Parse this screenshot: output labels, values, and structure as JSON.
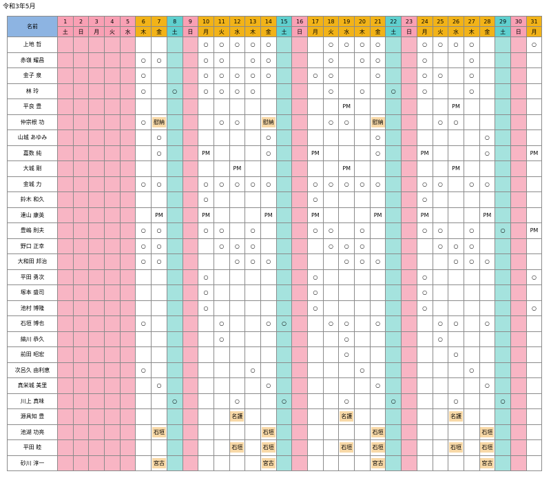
{
  "title": "令和3年5月",
  "header_name": "名前",
  "days": [
    {
      "d": "1",
      "w": "土",
      "t": "hol"
    },
    {
      "d": "2",
      "w": "日",
      "t": "hol"
    },
    {
      "d": "3",
      "w": "月",
      "t": "hol"
    },
    {
      "d": "4",
      "w": "火",
      "t": "hol"
    },
    {
      "d": "5",
      "w": "水",
      "t": "hol"
    },
    {
      "d": "6",
      "w": "木",
      "t": "w"
    },
    {
      "d": "7",
      "w": "金",
      "t": "w"
    },
    {
      "d": "8",
      "w": "土",
      "t": "sat"
    },
    {
      "d": "9",
      "w": "日",
      "t": "sun"
    },
    {
      "d": "10",
      "w": "月",
      "t": "w"
    },
    {
      "d": "11",
      "w": "火",
      "t": "w"
    },
    {
      "d": "12",
      "w": "水",
      "t": "w"
    },
    {
      "d": "13",
      "w": "木",
      "t": "w"
    },
    {
      "d": "14",
      "w": "金",
      "t": "w"
    },
    {
      "d": "15",
      "w": "土",
      "t": "sat"
    },
    {
      "d": "16",
      "w": "日",
      "t": "sun"
    },
    {
      "d": "17",
      "w": "月",
      "t": "w"
    },
    {
      "d": "18",
      "w": "火",
      "t": "w"
    },
    {
      "d": "19",
      "w": "水",
      "t": "w"
    },
    {
      "d": "20",
      "w": "木",
      "t": "w"
    },
    {
      "d": "21",
      "w": "金",
      "t": "w"
    },
    {
      "d": "22",
      "w": "土",
      "t": "sat"
    },
    {
      "d": "23",
      "w": "日",
      "t": "sun"
    },
    {
      "d": "24",
      "w": "月",
      "t": "w"
    },
    {
      "d": "25",
      "w": "火",
      "t": "w"
    },
    {
      "d": "26",
      "w": "水",
      "t": "w"
    },
    {
      "d": "27",
      "w": "木",
      "t": "w"
    },
    {
      "d": "28",
      "w": "金",
      "t": "w"
    },
    {
      "d": "29",
      "w": "土",
      "t": "sat"
    },
    {
      "d": "30",
      "w": "日",
      "t": "sun"
    },
    {
      "d": "31",
      "w": "月",
      "t": "w"
    }
  ],
  "rows": [
    {
      "name": "上地 哲",
      "cells": {
        "10": "○",
        "11": "○",
        "12": "○",
        "13": "○",
        "14": "○",
        "18": "○",
        "19": "○",
        "20": "○",
        "21": "○",
        "24": "○",
        "25": "○",
        "26": "○",
        "27": "○",
        "31": "○"
      }
    },
    {
      "name": "赤嶺 耀昌",
      "cells": {
        "6": "○",
        "7": "○",
        "10": "○",
        "11": "○",
        "13": "○",
        "14": "○",
        "18": "○",
        "20": "○",
        "21": "○",
        "24": "○",
        "27": "○"
      }
    },
    {
      "name": "金子 泉",
      "cells": {
        "6": "○",
        "10": "○",
        "11": "○",
        "12": "○",
        "13": "○",
        "14": "○",
        "17": "○",
        "18": "○",
        "21": "○",
        "24": "○",
        "25": "○",
        "27": "○"
      }
    },
    {
      "name": "林 玲",
      "cells": {
        "6": "○",
        "8": "○",
        "10": "○",
        "11": "○",
        "12": "○",
        "13": "○",
        "18": "○",
        "20": "○",
        "22": "○",
        "24": "○",
        "27": "○"
      }
    },
    {
      "name": "平良 豊",
      "cells": {
        "19": "PM",
        "26": "PM"
      }
    },
    {
      "name": "仲宗根 功",
      "cells": {
        "6": "○",
        "7": "[慰納]",
        "11": "○",
        "12": "○",
        "14": "[慰納]",
        "18": "○",
        "19": "○",
        "21": "[慰納]",
        "25": "○",
        "26": "○"
      }
    },
    {
      "name": "山城 あゆみ",
      "cells": {
        "7": "○",
        "14": "○",
        "21": "○",
        "28": "○"
      }
    },
    {
      "name": "嘉数 純",
      "cells": {
        "7": "○",
        "10": "PM",
        "14": "○",
        "17": "PM",
        "21": "○",
        "24": "PM",
        "28": "○",
        "31": "PM"
      }
    },
    {
      "name": "大城 剛",
      "cells": {
        "12": "PM",
        "19": "PM",
        "26": "PM"
      }
    },
    {
      "name": "金城 力",
      "cells": {
        "6": "○",
        "7": "○",
        "10": "○",
        "11": "○",
        "12": "○",
        "13": "○",
        "14": "○",
        "17": "○",
        "18": "○",
        "19": "○",
        "20": "○",
        "21": "○",
        "24": "○",
        "25": "○",
        "27": "○",
        "28": "○"
      }
    },
    {
      "name": "鈴木 和久",
      "cells": {
        "10": "○",
        "17": "○",
        "24": "○"
      }
    },
    {
      "name": "達山 康英",
      "cells": {
        "7": "PM",
        "10": "PM",
        "14": "PM",
        "17": "PM",
        "21": "PM",
        "24": "PM",
        "28": "PM"
      }
    },
    {
      "name": "豊嶋 則夫",
      "cells": {
        "6": "○",
        "7": "○",
        "10": "○",
        "11": "○",
        "13": "○",
        "17": "○",
        "18": "○",
        "20": "○",
        "24": "○",
        "25": "○",
        "27": "○",
        "29": "○",
        "31": "PM"
      }
    },
    {
      "name": "野口 正幸",
      "cells": {
        "6": "○",
        "7": "○",
        "11": "○",
        "12": "○",
        "13": "○",
        "18": "○",
        "19": "○",
        "20": "○",
        "25": "○",
        "26": "○",
        "27": "○"
      }
    },
    {
      "name": "大和田 邦治",
      "cells": {
        "6": "○",
        "7": "○",
        "12": "○",
        "13": "○",
        "14": "○",
        "19": "○",
        "20": "○",
        "21": "○",
        "26": "○",
        "27": "○",
        "28": "○"
      }
    },
    {
      "name": "平田 勇次",
      "cells": {
        "10": "○",
        "17": "○",
        "24": "○",
        "31": "○"
      }
    },
    {
      "name": "塚本 盛司",
      "cells": {
        "10": "○",
        "17": "○",
        "24": "○"
      }
    },
    {
      "name": "池村 博隆",
      "cells": {
        "10": "○",
        "17": "○",
        "24": "○",
        "31": "○"
      }
    },
    {
      "name": "石垣 博也",
      "cells": {
        "6": "○",
        "11": "○",
        "14": "○",
        "15": "○",
        "18": "○",
        "19": "○",
        "21": "○",
        "25": "○",
        "26": "○",
        "28": "○"
      }
    },
    {
      "name": "縞川 恭久",
      "cells": {
        "11": "○",
        "19": "○",
        "25": "○"
      }
    },
    {
      "name": "前田 昭宏",
      "cells": {
        "19": "○",
        "26": "○"
      }
    },
    {
      "name": "次呂久 由利恵",
      "cells": {
        "6": "○",
        "13": "○",
        "20": "○",
        "27": "○"
      }
    },
    {
      "name": "真栄城 美里",
      "cells": {
        "7": "○",
        "14": "○",
        "21": "○",
        "28": "○"
      }
    },
    {
      "name": "川上 真味",
      "cells": {
        "8": "○",
        "12": "○",
        "15": "○",
        "19": "○",
        "22": "○",
        "26": "○",
        "29": "○"
      }
    },
    {
      "name": "源具知 豊",
      "cells": {
        "12": "[名護]",
        "19": "[名護]",
        "26": "[名護]"
      }
    },
    {
      "name": "池湖 功亮",
      "cells": {
        "7": "[石垣]",
        "14": "[石垣]",
        "21": "[石垣]",
        "28": "[石垣]"
      }
    },
    {
      "name": "平田 睦",
      "cells": {
        "12": "[石垣]",
        "14": "[石垣]",
        "19": "[石垣]",
        "21": "[石垣]",
        "26": "[石垣]",
        "28": "[石垣]"
      }
    },
    {
      "name": "砂川 淳一",
      "cells": {
        "7": "[宮古]",
        "14": "[宮古]",
        "21": "[宮古]",
        "28": "[宮古]"
      }
    }
  ],
  "colors": {
    "header": "#f2b318",
    "name_header": "#8db4e2",
    "saturday": "#a5e3de",
    "holiday": "#f8b5c4",
    "tag": "#f8d9a7"
  }
}
